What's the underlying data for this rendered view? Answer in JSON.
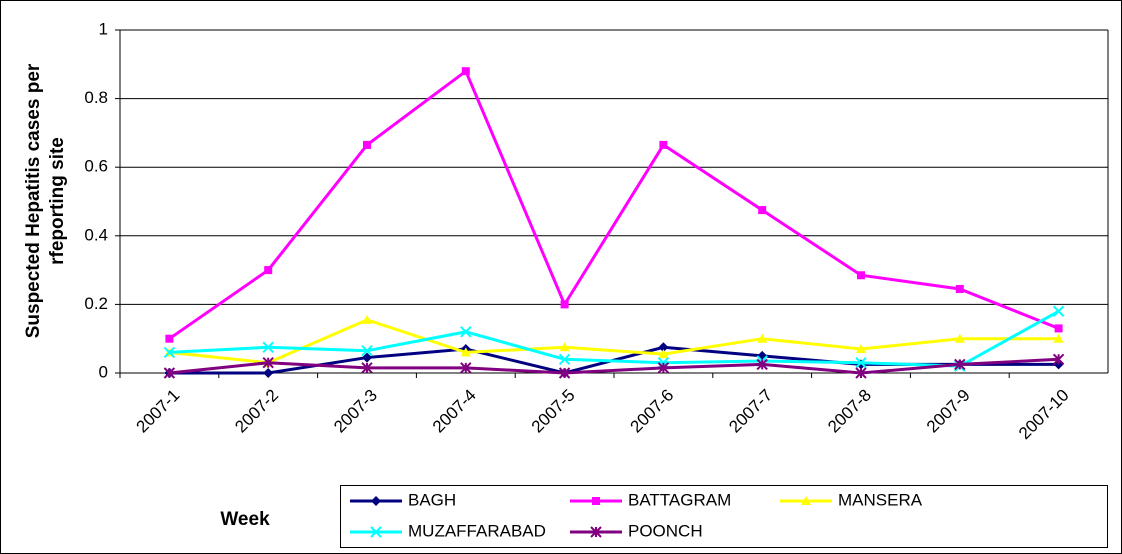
{
  "chart_data": {
    "type": "line",
    "y_label": "Suspected Hepatitis cases per rfeporting site",
    "x_label": "Week",
    "categories": [
      "2007-1",
      "2007-2",
      "2007-3",
      "2007-4",
      "2007-5",
      "2007-6",
      "2007-7",
      "2007-8",
      "2007-9",
      "2007-10"
    ],
    "series": [
      {
        "name": "BAGH",
        "color": "#000080",
        "marker": "diamond",
        "values": [
          0,
          0,
          0.045,
          0.07,
          0,
          0.075,
          0.05,
          0.025,
          0.025,
          0.025
        ]
      },
      {
        "name": "BATTAGRAM",
        "color": "#ff00ff",
        "marker": "square",
        "values": [
          0.1,
          0.3,
          0.665,
          0.88,
          0.2,
          0.665,
          0.475,
          0.285,
          0.245,
          0.13
        ]
      },
      {
        "name": "MANSERA",
        "color": "#ffff00",
        "marker": "triangle",
        "values": [
          0.06,
          0.03,
          0.155,
          0.06,
          0.075,
          0.055,
          0.1,
          0.07,
          0.1,
          0.1
        ]
      },
      {
        "name": "MUZAFFARABAD",
        "color": "#00ffff",
        "marker": "x",
        "values": [
          0.06,
          0.075,
          0.065,
          0.12,
          0.04,
          0.03,
          0.035,
          0.03,
          0.02,
          0.18
        ]
      },
      {
        "name": "POONCH",
        "color": "#800080",
        "marker": "star",
        "values": [
          0,
          0.03,
          0.015,
          0.015,
          0,
          0.015,
          0.025,
          0,
          0.025,
          0.04
        ]
      }
    ],
    "ylim": [
      0,
      1
    ],
    "yticks": [
      0,
      0.2,
      0.4,
      0.6,
      0.8,
      1
    ],
    "grid": true,
    "legend": "bottom"
  }
}
